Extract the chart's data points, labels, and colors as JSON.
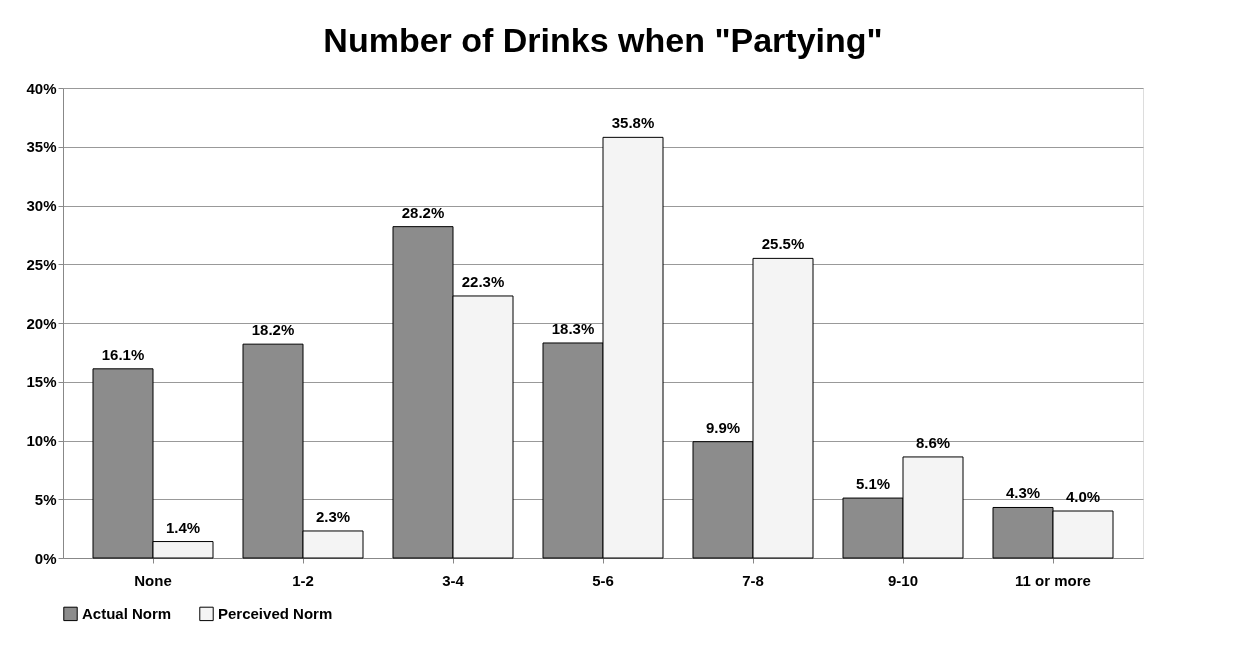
{
  "chart_data": {
    "type": "bar",
    "title": "Number of Drinks when \"Partying\"",
    "categories": [
      "None",
      "1-2",
      "3-4",
      "5-6",
      "7-8",
      "9-10",
      "11 or more"
    ],
    "series": [
      {
        "name": "Actual Norm",
        "color": "#8c8c8c",
        "values": [
          16.1,
          18.2,
          28.2,
          18.3,
          9.9,
          5.1,
          4.3
        ],
        "value_labels": [
          "16.1%",
          "18.2%",
          "28.2%",
          "18.3%",
          "9.9%",
          "5.1%",
          "4.3%"
        ]
      },
      {
        "name": "Perceived Norm",
        "color": "#f4f4f4",
        "values": [
          1.4,
          2.3,
          22.3,
          35.8,
          25.5,
          8.6,
          4.0
        ],
        "value_labels": [
          "1.4%",
          "2.3%",
          "22.3%",
          "35.8%",
          "25.5%",
          "8.6%",
          "4.0%"
        ]
      }
    ],
    "ylim": [
      0,
      40
    ],
    "yticks": [
      {
        "value": 0,
        "label": "0%"
      },
      {
        "value": 5,
        "label": "5%"
      },
      {
        "value": 10,
        "label": "10%"
      },
      {
        "value": 15,
        "label": "15%"
      },
      {
        "value": 20,
        "label": "20%"
      },
      {
        "value": 25,
        "label": "25%"
      },
      {
        "value": 30,
        "label": "30%"
      },
      {
        "value": 35,
        "label": "35%"
      },
      {
        "value": 40,
        "label": "40%"
      }
    ],
    "grid": "y",
    "legend": "bottom"
  }
}
